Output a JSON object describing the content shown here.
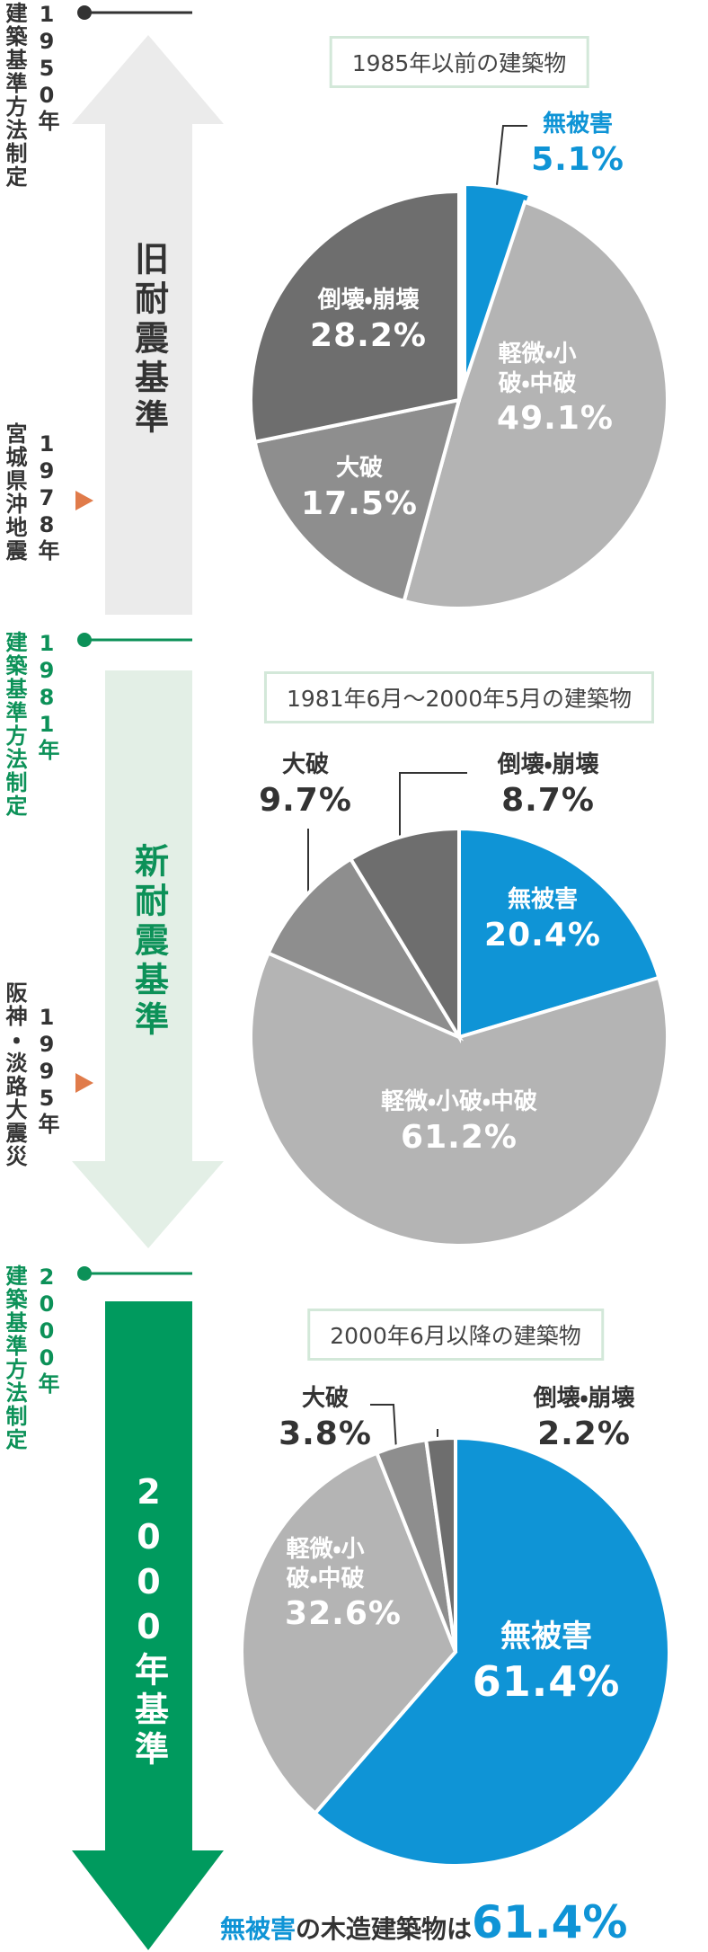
{
  "chart_data": [
    {
      "type": "pie",
      "title": "1985年以前の建築物",
      "categories": [
        "無被害",
        "軽微・小破・中破",
        "大破",
        "倒壊・崩壊"
      ],
      "values": [
        5.1,
        49.1,
        17.5,
        28.2
      ],
      "value_labels": [
        "5.1%",
        "49.1%",
        "17.5%",
        "28.2%"
      ],
      "colors": [
        "#0f94d6",
        "#b4b4b4",
        "#8e8e8e",
        "#6e6e6e"
      ]
    },
    {
      "type": "pie",
      "title": "1981年6月〜2000年5月の建築物",
      "categories": [
        "無被害",
        "軽微・小破・中破",
        "大破",
        "倒壊・崩壊"
      ],
      "values": [
        20.4,
        61.2,
        9.7,
        8.7
      ],
      "value_labels": [
        "20.4%",
        "61.2%",
        "9.7%",
        "8.7%"
      ],
      "colors": [
        "#0f94d6",
        "#b4b4b4",
        "#8e8e8e",
        "#6e6e6e"
      ]
    },
    {
      "type": "pie",
      "title": "2000年6月以降の建築物",
      "categories": [
        "無被害",
        "軽微・小破・中破",
        "大破",
        "倒壊・崩壊"
      ],
      "values": [
        61.4,
        32.6,
        3.8,
        2.2
      ],
      "value_labels": [
        "61.4%",
        "32.6%",
        "3.8%",
        "2.2%"
      ],
      "colors": [
        "#0f94d6",
        "#b4b4b4",
        "#8e8e8e",
        "#6e6e6e"
      ]
    }
  ],
  "timeline": {
    "eras": [
      "旧耐震基準",
      "新耐震基準",
      "2000年基準"
    ],
    "events": [
      {
        "year": "1950年",
        "name": "建築基準方法制定"
      },
      {
        "year": "1978年",
        "name": "宮城県沖地震"
      },
      {
        "year": "1981年",
        "name": "建築基準方法制定"
      },
      {
        "year": "1995年",
        "name": "阪神・淡路大震災"
      },
      {
        "year": "2000年",
        "name": "建築基準方法制定"
      }
    ]
  },
  "footer": {
    "highlight": "無被害",
    "text": "の木造建築物は",
    "value": "61.4%"
  }
}
